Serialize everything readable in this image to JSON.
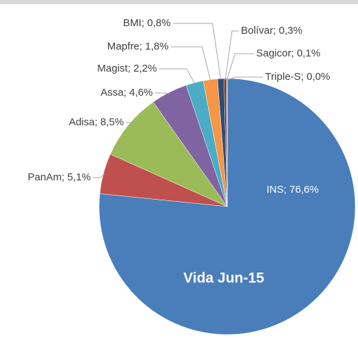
{
  "chart_data": {
    "type": "pie",
    "title": "Vida Jun-15",
    "values": [
      76.6,
      5.1,
      8.5,
      4.6,
      2.2,
      1.8,
      0.8,
      0.3,
      0.1,
      0.0
    ],
    "value_labels": [
      "INS; 76,6%",
      "PanAm; 5,1%",
      "Adisa; 8,5%",
      "Assa; 4,6%",
      "Magist; 2,2%",
      "Mapfre; 1,8%",
      "BMI; 0,8%",
      "Bolívar; 0,3%",
      "Sagicor; 0,1%",
      "Triple-S; 0,0%"
    ],
    "colors": [
      "#4a7ebb",
      "#c0504d",
      "#9bbb59",
      "#8064a2",
      "#4bacc6",
      "#f79646",
      "#2c4d75",
      "#772c2a",
      "#5f7530",
      "#4d3b62"
    ]
  }
}
